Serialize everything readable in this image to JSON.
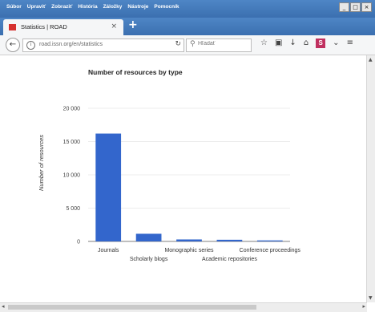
{
  "menu": [
    "Súbor",
    "Upraviť",
    "Zobraziť",
    "História",
    "Záložky",
    "Nástroje",
    "Pomocník"
  ],
  "tab": {
    "title": "Statistics | ROAD"
  },
  "nav": {
    "url": "road.issn.org/en/statistics",
    "search_placeholder": "Hľadať"
  },
  "chart_data": {
    "type": "bar",
    "title": "Number of resources by type",
    "ylabel": "Number of resources",
    "xlabel": "",
    "categories": [
      "Journals",
      "Scholarly blogs",
      "Monographic series",
      "Academic repositories",
      "Conference proceedings"
    ],
    "values": [
      16200,
      1150,
      300,
      250,
      150
    ],
    "ylim": [
      0,
      20000
    ],
    "yticks": [
      0,
      5000,
      10000,
      15000,
      20000
    ],
    "ytick_labels": [
      "0",
      "5 000",
      "10 000",
      "15 000",
      "20 000"
    ],
    "bar_color": "#3366cc",
    "grid": true
  }
}
